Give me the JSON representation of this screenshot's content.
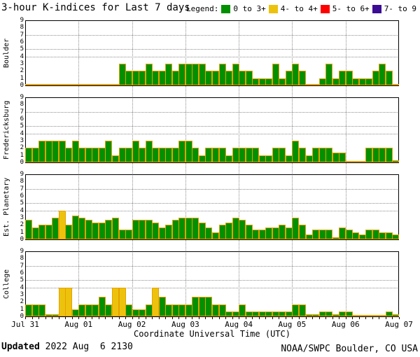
{
  "title": "3-hour K-indices for Last 7 days",
  "legend": {
    "label": "Legend:",
    "items": [
      {
        "label": "0 to 3+",
        "color": "#009000"
      },
      {
        "label": "4- to 4+",
        "color": "#edc20d"
      },
      {
        "label": "5- to 6+",
        "color": "#ff0000"
      },
      {
        "label": "7- to 9",
        "color": "#3c0c94"
      }
    ]
  },
  "xaxis": {
    "label": "Coordinate Universal Time (UTC)",
    "ticks": [
      "Jul 31",
      "Aug 01",
      "Aug 02",
      "Aug 03",
      "Aug 04",
      "Aug 05",
      "Aug 06",
      "Aug 07"
    ]
  },
  "footer": {
    "updated_label": "Updated",
    "updated_value": " 2022 Aug  6 2130",
    "source": "NOAA/SWPC Boulder, CO USA"
  },
  "chart_data": {
    "type": "bar",
    "title": "3-hour K-indices for Last 7 days",
    "ylim": [
      0,
      9
    ],
    "yticks": [
      0,
      1,
      2,
      3,
      4,
      5,
      6,
      7,
      8,
      9
    ],
    "grid_levels": [
      4,
      5,
      7
    ],
    "days": 7,
    "bins_per_day": 8,
    "bar_fill_green": "#009000",
    "bar_fill_yellow": "#edc20d",
    "bar_outline": "#e8a000",
    "color_rule": "green K<3.5, yellow 3.5<=K<4.5, red 4.5<=K<6.5, purple K>=6.5",
    "series": [
      {
        "name": "Boulder",
        "values": [
          0,
          0,
          0,
          0,
          0,
          0,
          0,
          0,
          0,
          0,
          0,
          0,
          0,
          0,
          3,
          2,
          2,
          2,
          3,
          2,
          2,
          3,
          2,
          3,
          3,
          3,
          3,
          2,
          2,
          3,
          2,
          3,
          2,
          2,
          1,
          1,
          1,
          3,
          1,
          2,
          3,
          2,
          0,
          0,
          1,
          3,
          1,
          2,
          2,
          1,
          1,
          1,
          2,
          3,
          2,
          0
        ]
      },
      {
        "name": "Fredericksburg",
        "values": [
          2,
          2,
          3,
          3,
          3,
          3,
          2,
          3,
          2,
          2,
          2,
          2,
          3,
          1,
          2,
          2,
          3,
          2,
          3,
          2,
          2,
          2,
          2,
          3,
          3,
          2,
          1,
          2,
          2,
          2,
          1,
          2,
          2,
          2,
          2,
          1,
          1,
          2,
          2,
          1,
          3,
          2,
          1,
          2,
          2,
          2,
          1.33,
          1.33,
          0,
          0,
          0,
          2,
          2,
          2,
          2,
          0.33
        ]
      },
      {
        "name": "Est. Planetary",
        "values": [
          2.67,
          1.67,
          2,
          2,
          3,
          4,
          2,
          3.33,
          3,
          2.67,
          2.33,
          2.33,
          2.67,
          3,
          1.33,
          1.33,
          2.67,
          2.67,
          2.67,
          2.33,
          1.67,
          2,
          2.67,
          3,
          3,
          3,
          2.33,
          1.67,
          1,
          2,
          2.33,
          3,
          2.67,
          2,
          1.33,
          1.33,
          1.67,
          1.67,
          2,
          1.67,
          3,
          2,
          0.67,
          1.33,
          1.33,
          1.33,
          0.33,
          1.67,
          1.33,
          1,
          0.67,
          1.33,
          1.33,
          1,
          1,
          0.67
        ]
      },
      {
        "name": "College",
        "values": [
          1.67,
          1.67,
          1.67,
          0.33,
          0.33,
          4,
          4,
          1,
          1.67,
          1.67,
          1.67,
          2.67,
          1.67,
          4,
          4,
          1.67,
          1,
          1,
          1.67,
          4,
          2.67,
          1.67,
          1.67,
          1.67,
          1.67,
          2.67,
          2.67,
          2.67,
          1.67,
          1.67,
          0.67,
          0.67,
          1.67,
          0.67,
          0.67,
          0.67,
          0.67,
          0.67,
          0.67,
          0.67,
          1.67,
          1.67,
          0.33,
          0.33,
          0.67,
          0.67,
          0.33,
          0.67,
          0.67,
          0,
          0,
          0,
          0,
          0,
          0.67,
          0.33
        ]
      }
    ]
  }
}
